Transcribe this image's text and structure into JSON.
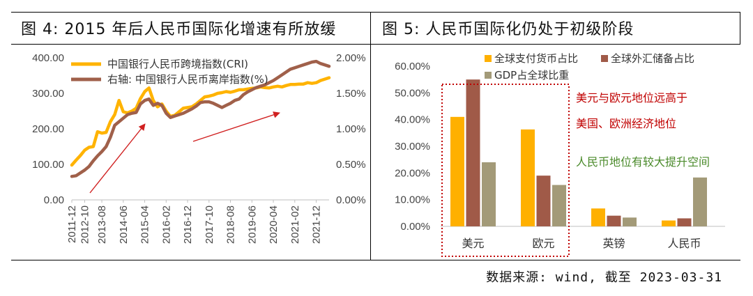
{
  "left_panel": {
    "title": "图 4: 2015 年后人民币国际化增速有所放缓"
  },
  "right_panel": {
    "title": "图 5: 人民币国际化仍处于初级阶段"
  },
  "source": "数据来源: wind, 截至 2023-03-31",
  "chart_data": [
    {
      "type": "line",
      "title": "",
      "x": [
        "2011-12",
        "2012-04",
        "2012-07",
        "2012-10",
        "2013-01",
        "2013-04",
        "2013-06",
        "2013-08",
        "2013-10",
        "2013-12",
        "2014-02",
        "2014-04",
        "2014-06",
        "2014-08",
        "2014-10",
        "2014-12",
        "2015-02",
        "2015-04",
        "2015-06",
        "2015-08",
        "2015-10",
        "2015-12",
        "2016-02",
        "2016-04",
        "2016-06",
        "2016-08",
        "2016-10",
        "2016-12",
        "2017-02",
        "2017-04",
        "2017-06",
        "2017-08",
        "2017-10",
        "2017-12",
        "2018-02",
        "2018-04",
        "2018-06",
        "2018-08",
        "2018-10",
        "2018-12",
        "2019-02",
        "2019-04",
        "2019-06",
        "2019-08",
        "2019-10",
        "2019-12",
        "2020-02",
        "2020-04",
        "2020-06",
        "2020-08",
        "2020-10",
        "2020-12",
        "2021-02",
        "2021-04",
        "2021-06",
        "2021-08",
        "2021-10",
        "2021-12",
        "2022-03",
        "2022-06",
        "2022-09"
      ],
      "x_tick_labels": [
        "2011-12",
        "2012-10",
        "2013-08",
        "2014-06",
        "2015-04",
        "2016-02",
        "2016-12",
        "2017-10",
        "2018-08",
        "2019-06",
        "2020-04",
        "2021-02",
        "2021-12"
      ],
      "series": [
        {
          "name": "中国银行人民币跨境指数(CRI)",
          "axis": "left",
          "color": "#FFB300",
          "values": [
            98,
            112,
            125,
            140,
            148,
            150,
            192,
            188,
            190,
            220,
            240,
            280,
            248,
            245,
            250,
            258,
            285,
            305,
            315,
            280,
            262,
            270,
            250,
            235,
            238,
            248,
            258,
            260,
            262,
            270,
            280,
            290,
            292,
            295,
            300,
            302,
            305,
            303,
            306,
            310,
            310,
            312,
            314,
            315,
            318,
            316,
            315,
            318,
            320,
            318,
            322,
            325,
            325,
            326,
            326,
            330,
            328,
            330,
            336,
            340,
            344
          ]
        },
        {
          "name": "右轴: 中国银行人民币离岸指数(%)",
          "axis": "right",
          "color": "#A0604A",
          "values": [
            0.33,
            0.34,
            0.38,
            0.42,
            0.47,
            0.55,
            0.62,
            0.68,
            0.75,
            0.88,
            1.05,
            1.1,
            1.15,
            1.2,
            1.22,
            1.23,
            1.35,
            1.4,
            1.42,
            1.33,
            1.36,
            1.33,
            1.22,
            1.16,
            1.18,
            1.2,
            1.22,
            1.25,
            1.28,
            1.32,
            1.37,
            1.38,
            1.38,
            1.36,
            1.33,
            1.3,
            1.33,
            1.36,
            1.4,
            1.42,
            1.48,
            1.52,
            1.55,
            1.58,
            1.6,
            1.62,
            1.65,
            1.68,
            1.72,
            1.76,
            1.8,
            1.84,
            1.86,
            1.88,
            1.9,
            1.92,
            1.94,
            1.95,
            1.92,
            1.9,
            1.88
          ]
        }
      ],
      "ylim_left": [
        0,
        400
      ],
      "ylim_right": [
        0,
        2
      ],
      "y_left_ticks": [
        "400.00",
        "300.00",
        "200.00",
        "100.00",
        "0.00"
      ],
      "y_right_ticks": [
        "2.00%",
        "1.50%",
        "1.00%",
        "0.50%",
        "0.00%"
      ],
      "legend_position": "top-left",
      "grid": false,
      "annotations": [
        "red trend arrow 2012-2015",
        "red trend arrow 2016-2020"
      ]
    },
    {
      "type": "bar",
      "title": "",
      "categories": [
        "美元",
        "欧元",
        "英镑",
        "人民币"
      ],
      "series": [
        {
          "name": "全球支付货币占比",
          "color": "#FFB000",
          "values": [
            41.0,
            36.3,
            6.7,
            2.2
          ]
        },
        {
          "name": "全球外汇储备占比",
          "color": "#A05A48",
          "values": [
            55.0,
            19.0,
            4.0,
            3.0
          ]
        },
        {
          "name": "GDP占全球比重",
          "color": "#A39A78",
          "values": [
            24.0,
            15.5,
            3.3,
            18.3
          ]
        }
      ],
      "ylim": [
        0,
        60
      ],
      "y_ticks": [
        "60.00%",
        "50.00%",
        "40.00%",
        "30.00%",
        "20.00%",
        "10.00%",
        "0.00%"
      ],
      "legend_position": "top",
      "grid": false,
      "annotations": {
        "red_1": "美元与欧元地位远高于",
        "red_2": "美国、欧洲经济地位",
        "green": "人民币地位有较大提升空间"
      }
    }
  ]
}
